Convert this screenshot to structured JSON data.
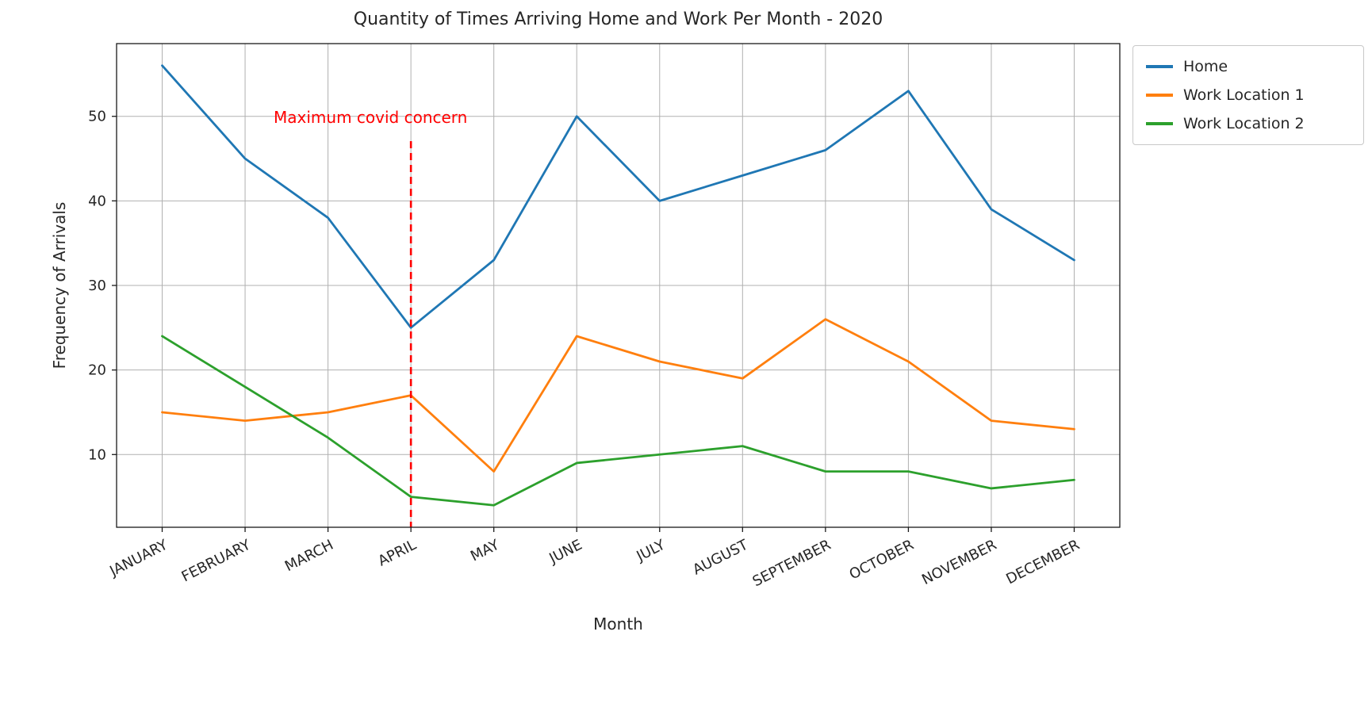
{
  "chart_data": {
    "type": "line",
    "title": "Quantity of Times Arriving Home and Work Per Month - 2020",
    "xlabel": "Month",
    "ylabel": "Frequency of Arrivals",
    "categories": [
      "JANUARY",
      "FEBRUARY",
      "MARCH",
      "APRIL",
      "MAY",
      "JUNE",
      "JULY",
      "AUGUST",
      "SEPTEMBER",
      "OCTOBER",
      "NOVEMBER",
      "DECEMBER"
    ],
    "yticks": [
      10,
      20,
      30,
      40,
      50
    ],
    "ylim": [
      1.4,
      58.6
    ],
    "grid": true,
    "legend_position": "upper right, outside plot",
    "series": [
      {
        "name": "Home",
        "color": "#1f77b4",
        "values": [
          56,
          45,
          38,
          25,
          33,
          50,
          40,
          43,
          46,
          53,
          39,
          33
        ]
      },
      {
        "name": "Work Location 1",
        "color": "#ff7f0e",
        "values": [
          15,
          14,
          15,
          17,
          8,
          24,
          21,
          19,
          26,
          21,
          14,
          13
        ]
      },
      {
        "name": "Work Location 2",
        "color": "#2ca02c",
        "values": [
          24,
          18,
          12,
          5,
          4,
          9,
          10,
          11,
          8,
          8,
          6,
          7
        ]
      }
    ],
    "annotation": {
      "text": "Maximum covid concern",
      "color": "#ff0000",
      "x_category": "APRIL"
    },
    "vline": {
      "x_category": "APRIL",
      "color": "#ff0000",
      "style": "dashed"
    },
    "colors": {
      "grid": "#b0b0b0",
      "spine": "#1a1a1a",
      "text": "#262626",
      "background": "#ffffff"
    }
  }
}
